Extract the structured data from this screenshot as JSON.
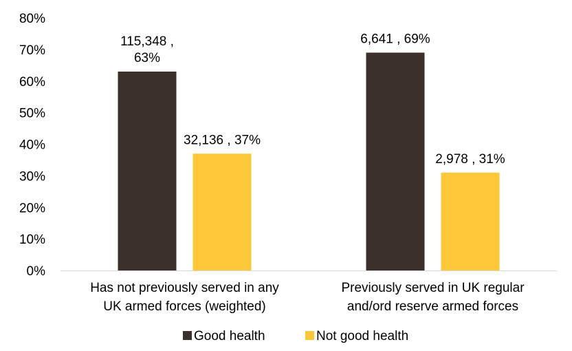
{
  "chart_data": {
    "type": "bar",
    "title": "",
    "xlabel": "",
    "ylabel": "",
    "ylim": [
      0,
      80
    ],
    "y_ticks": [
      "0%",
      "10%",
      "20%",
      "30%",
      "40%",
      "50%",
      "60%",
      "70%",
      "80%"
    ],
    "grid": false,
    "legend_position": "bottom",
    "categories": [
      [
        "Has not previously served in any",
        "UK armed forces (weighted)"
      ],
      [
        "Previously served in UK regular",
        "and/ord reserve armed forces"
      ]
    ],
    "series": [
      {
        "name": "Good health",
        "color": "#3b302b",
        "values": [
          63,
          69
        ],
        "labels": [
          [
            "115,348 ,",
            "63%"
          ],
          [
            "6,641 , 69%"
          ]
        ]
      },
      {
        "name": "Not good health",
        "color": "#fcc83a",
        "values": [
          37,
          31
        ],
        "labels": [
          [
            "32,136 , 37%"
          ],
          [
            "2,978 , 31%"
          ]
        ]
      }
    ]
  }
}
